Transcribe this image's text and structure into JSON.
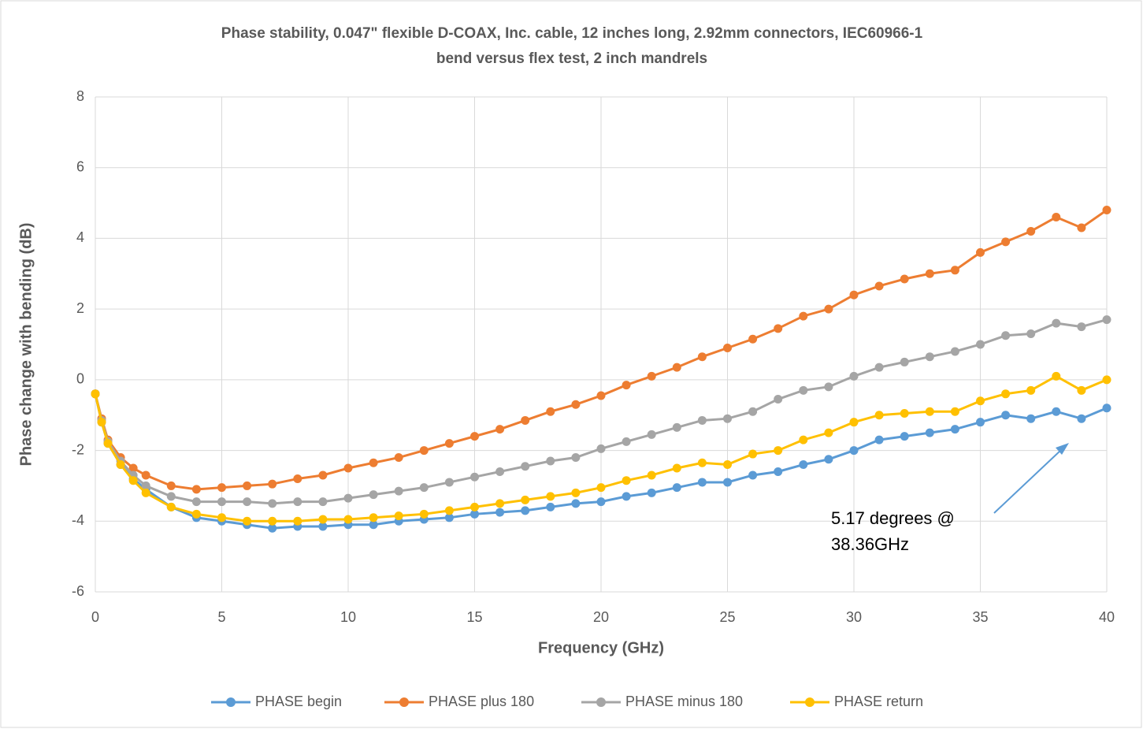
{
  "chart_data": {
    "type": "line",
    "title": [
      "Phase stability, 0.047\" flexible D-COAX, Inc. cable, 12 inches long, 2.92mm connectors, IEC60966-1",
      "bend versus flex test, 2 inch mandrels"
    ],
    "x_label": "Frequency (GHz)",
    "y_label": "Phase change with bending (dB)",
    "annotation": [
      "5.17 degrees @",
      "38.36GHz"
    ],
    "x": [
      0,
      0.25,
      0.5,
      1,
      1.5,
      2,
      3,
      4,
      5,
      6,
      7,
      8,
      9,
      10,
      11,
      12,
      13,
      14,
      15,
      16,
      17,
      18,
      19,
      20,
      21,
      22,
      23,
      24,
      25,
      26,
      27,
      28,
      29,
      30,
      31,
      32,
      33,
      34,
      35,
      36,
      37,
      38,
      39,
      40
    ],
    "series": [
      {
        "name": "PHASE begin",
        "color": "#5b9bd5",
        "values": [
          -0.4,
          -1.2,
          -1.8,
          -2.4,
          -2.8,
          -3.1,
          -3.6,
          -3.9,
          -4.0,
          -4.1,
          -4.2,
          -4.15,
          -4.15,
          -4.1,
          -4.1,
          -4.0,
          -3.95,
          -3.9,
          -3.8,
          -3.75,
          -3.7,
          -3.6,
          -3.5,
          -3.45,
          -3.3,
          -3.2,
          -3.05,
          -2.9,
          -2.9,
          -2.7,
          -2.6,
          -2.4,
          -2.25,
          -2.0,
          -1.7,
          -1.6,
          -1.5,
          -1.4,
          -1.2,
          -1.0,
          -1.1,
          -0.9,
          -1.1,
          -0.8
        ]
      },
      {
        "name": "PHASE plus 180",
        "color": "#ed7d31",
        "values": [
          -0.4,
          -1.1,
          -1.7,
          -2.2,
          -2.5,
          -2.7,
          -3.0,
          -3.1,
          -3.05,
          -3.0,
          -2.95,
          -2.8,
          -2.7,
          -2.5,
          -2.35,
          -2.2,
          -2.0,
          -1.8,
          -1.6,
          -1.4,
          -1.15,
          -0.9,
          -0.7,
          -0.45,
          -0.15,
          0.1,
          0.35,
          0.65,
          0.9,
          1.15,
          1.45,
          1.8,
          2.0,
          2.4,
          2.65,
          2.85,
          3.0,
          3.1,
          3.6,
          3.9,
          4.2,
          4.6,
          4.3,
          4.8
        ]
      },
      {
        "name": "PHASE minus 180",
        "color": "#a5a5a5",
        "values": [
          -0.4,
          -1.15,
          -1.75,
          -2.3,
          -2.7,
          -3.0,
          -3.3,
          -3.45,
          -3.45,
          -3.45,
          -3.5,
          -3.45,
          -3.45,
          -3.35,
          -3.25,
          -3.15,
          -3.05,
          -2.9,
          -2.75,
          -2.6,
          -2.45,
          -2.3,
          -2.2,
          -1.95,
          -1.75,
          -1.55,
          -1.35,
          -1.15,
          -1.1,
          -0.9,
          -0.55,
          -0.3,
          -0.2,
          0.1,
          0.35,
          0.5,
          0.65,
          0.8,
          1.0,
          1.25,
          1.3,
          1.6,
          1.5,
          1.7
        ]
      },
      {
        "name": "PHASE return",
        "color": "#ffc000",
        "values": [
          -0.4,
          -1.2,
          -1.8,
          -2.4,
          -2.85,
          -3.2,
          -3.6,
          -3.8,
          -3.9,
          -4.0,
          -4.0,
          -4.0,
          -3.95,
          -3.95,
          -3.9,
          -3.85,
          -3.8,
          -3.7,
          -3.6,
          -3.5,
          -3.4,
          -3.3,
          -3.2,
          -3.05,
          -2.85,
          -2.7,
          -2.5,
          -2.35,
          -2.4,
          -2.1,
          -2.0,
          -1.7,
          -1.5,
          -1.2,
          -1.0,
          -0.95,
          -0.9,
          -0.9,
          -0.6,
          -0.4,
          -0.3,
          0.1,
          -0.3,
          0.0
        ]
      }
    ],
    "xlim": [
      0,
      40
    ],
    "xticks": [
      0,
      5,
      10,
      15,
      20,
      25,
      30,
      35,
      40
    ],
    "ylim": [
      -6,
      8
    ],
    "yticks": [
      -6,
      -4,
      -2,
      0,
      2,
      4,
      6,
      8
    ],
    "grid": true,
    "legend": "bottom"
  }
}
